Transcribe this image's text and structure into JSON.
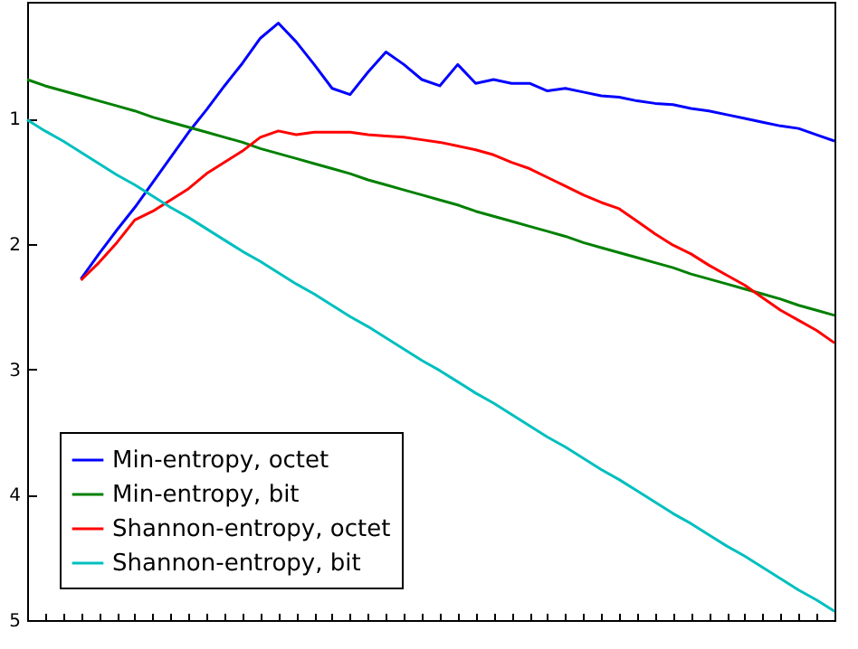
{
  "chart_data": {
    "type": "line",
    "categories": [
      null,
      null,
      null,
      null,
      null,
      null,
      null,
      null,
      null,
      null,
      null,
      null,
      null,
      null,
      null,
      null,
      null,
      null,
      null,
      null,
      null,
      null,
      null,
      null,
      null,
      null,
      null,
      null,
      null,
      null,
      null,
      null,
      null,
      null,
      null,
      null,
      null,
      null,
      null,
      null,
      null,
      null,
      null,
      null,
      null,
      null
    ],
    "series": [
      {
        "name": "Min-entropy, octet",
        "color": "#0000ff",
        "values": [
          null,
          null,
          null,
          2.28,
          2.08,
          1.89,
          1.71,
          1.51,
          1.31,
          1.11,
          0.93,
          0.74,
          0.56,
          0.36,
          0.24,
          0.39,
          0.57,
          0.76,
          0.81,
          0.63,
          0.47,
          0.57,
          0.69,
          0.74,
          0.57,
          0.72,
          0.69,
          0.72,
          0.72,
          0.78,
          0.76,
          0.79,
          0.82,
          0.83,
          0.86,
          0.88,
          0.89,
          0.92,
          0.94,
          0.97,
          1.0,
          1.03,
          1.06,
          1.08,
          1.13,
          1.18
        ]
      },
      {
        "name": "Min-entropy, bit",
        "color": "#008000",
        "values": [
          0.69,
          0.74,
          0.78,
          0.82,
          0.86,
          0.9,
          0.94,
          0.99,
          1.03,
          1.07,
          1.11,
          1.15,
          1.19,
          1.24,
          1.28,
          1.32,
          1.36,
          1.4,
          1.44,
          1.49,
          1.53,
          1.57,
          1.61,
          1.65,
          1.69,
          1.74,
          1.78,
          1.82,
          1.86,
          1.9,
          1.94,
          1.99,
          2.03,
          2.07,
          2.11,
          2.15,
          2.19,
          2.24,
          2.28,
          2.32,
          2.36,
          2.4,
          2.44,
          2.49,
          2.53,
          2.57
        ]
      },
      {
        "name": "Shannon-entropy, octet",
        "color": "#ff0000",
        "values": [
          null,
          null,
          null,
          2.29,
          2.15,
          1.99,
          1.81,
          1.74,
          1.65,
          1.56,
          1.44,
          1.35,
          1.26,
          1.15,
          1.1,
          1.13,
          1.11,
          1.11,
          1.11,
          1.13,
          1.14,
          1.15,
          1.17,
          1.19,
          1.22,
          1.25,
          1.29,
          1.35,
          1.4,
          1.47,
          1.54,
          1.61,
          1.67,
          1.72,
          1.82,
          1.92,
          2.01,
          2.08,
          2.17,
          2.25,
          2.33,
          2.43,
          2.53,
          2.61,
          2.69,
          2.79
        ]
      },
      {
        "name": "Shannon-entropy, bit",
        "color": "#00bfbf",
        "values": [
          1.01,
          1.1,
          1.18,
          1.27,
          1.36,
          1.45,
          1.53,
          1.62,
          1.71,
          1.79,
          1.88,
          1.97,
          2.06,
          2.14,
          2.23,
          2.32,
          2.4,
          2.49,
          2.58,
          2.66,
          2.75,
          2.84,
          2.93,
          3.01,
          3.1,
          3.19,
          3.27,
          3.36,
          3.45,
          3.54,
          3.62,
          3.71,
          3.8,
          3.88,
          3.97,
          4.06,
          4.15,
          4.23,
          4.32,
          4.41,
          4.49,
          4.58,
          4.67,
          4.76,
          4.84,
          4.93
        ]
      }
    ],
    "ylim": [
      5,
      0.07
    ],
    "yticks": [
      1,
      2,
      3,
      4,
      5
    ],
    "grid": false,
    "legend": "bottom left",
    "tick_labels": "y",
    "line_style": "solid",
    "marker": "none"
  }
}
